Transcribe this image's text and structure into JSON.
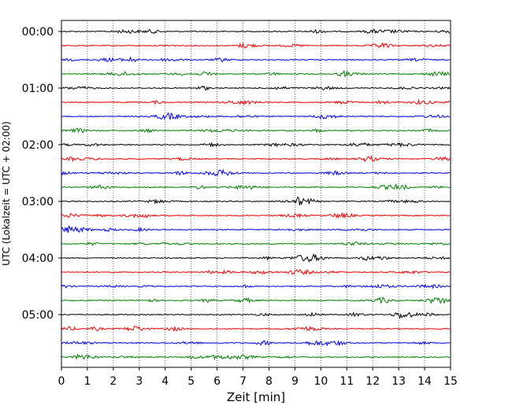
{
  "chart_data": {
    "type": "line",
    "title": "",
    "xlabel": "Zeit  [min]",
    "ylabel": "UTC (Lokalzeit = UTC + 02:00)",
    "xlim": [
      0,
      15
    ],
    "x_ticks": [
      "0",
      "1",
      "2",
      "3",
      "4",
      "5",
      "6",
      "7",
      "8",
      "9",
      "10",
      "11",
      "12",
      "13",
      "14",
      "15"
    ],
    "y_tick_labels": [
      "00:00",
      "01:00",
      "02:00",
      "03:00",
      "04:00",
      "05:00"
    ],
    "grid": "vertical dotted",
    "trace_interval_min": 15,
    "trace_count": 24,
    "trace_colors": [
      "#000000",
      "#ff0000",
      "#0000ff",
      "#008000"
    ]
  }
}
